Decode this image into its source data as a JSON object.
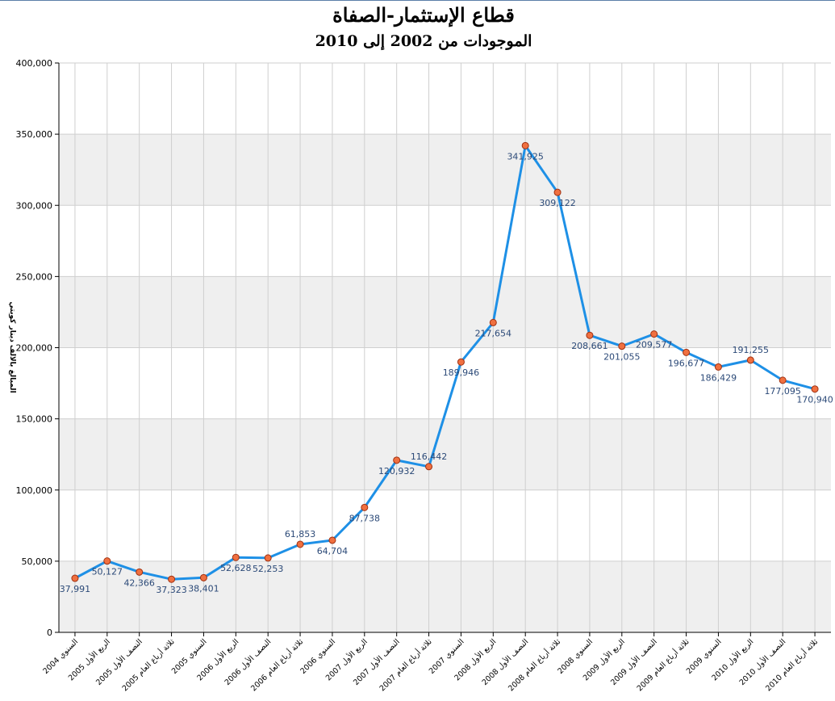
{
  "chart_data": {
    "type": "line",
    "title": "قطاع الإستثمار-الصفاة",
    "subtitle": "الموجودات من 2002 إلى 2010",
    "ylabel": "المبالغ بالالف دينار كويتي",
    "xlabel": "",
    "ylim": [
      0,
      400000
    ],
    "yticks": [
      "0",
      "50,000",
      "100,000",
      "150,000",
      "200,000",
      "250,000",
      "300,000",
      "350,000",
      "400,000"
    ],
    "categories": [
      "السنوي 2004",
      "الربع الأول 2005",
      "النصف الأول 2005",
      "ثلاثة أرباع العام 2005",
      "السنوي 2005",
      "الربع الأول 2006",
      "النصف الأول 2006",
      "ثلاثة أرباع العام 2006",
      "السنوي 2006",
      "الربع الأول 2007",
      "النصف الأول 2007",
      "ثلاثة أرباع العام 2007",
      "السنوي 2007",
      "الربع الأول 2008",
      "النصف الأول 2008",
      "ثلاثة أرباع العام 2008",
      "السنوي 2008",
      "الربع الأول 2009",
      "النصف الأول 2009",
      "ثلاثة أرباع العام 2009",
      "السنوي 2009",
      "الربع الأول 2010",
      "النصف الأول 2010",
      "ثلاثة أرباع العام 2010"
    ],
    "values": [
      37991,
      50127,
      42366,
      37323,
      38401,
      52628,
      52253,
      61853,
      64704,
      87738,
      120932,
      116442,
      189946,
      217654,
      341925,
      309122,
      208661,
      201055,
      209577,
      196677,
      186429,
      191255,
      177095,
      170940
    ],
    "value_labels": [
      "37,991",
      "50,127",
      "42,366",
      "37,323",
      "38,401",
      "52,628",
      "52,253",
      "61,853",
      "64,704",
      "87,738",
      "120,932",
      "116,442",
      "189,946",
      "217,654",
      "341,925",
      "309,122",
      "208,661",
      "201,055",
      "209,577",
      "196,677",
      "186,429",
      "191,255",
      "177,095",
      "170,940"
    ],
    "label_position": [
      "below",
      "below",
      "below",
      "below",
      "below",
      "below",
      "below",
      "above",
      "below",
      "below",
      "below",
      "above",
      "below",
      "below",
      "below",
      "below",
      "below",
      "below",
      "below",
      "below",
      "below",
      "above",
      "below",
      "below"
    ],
    "grid": true,
    "colors": {
      "line": "#1e90e6",
      "marker_fill": "#f07040",
      "marker_stroke": "#a03010",
      "band": "#efefef",
      "grid": "#cfcfcf",
      "label": "#2c4a78"
    }
  }
}
